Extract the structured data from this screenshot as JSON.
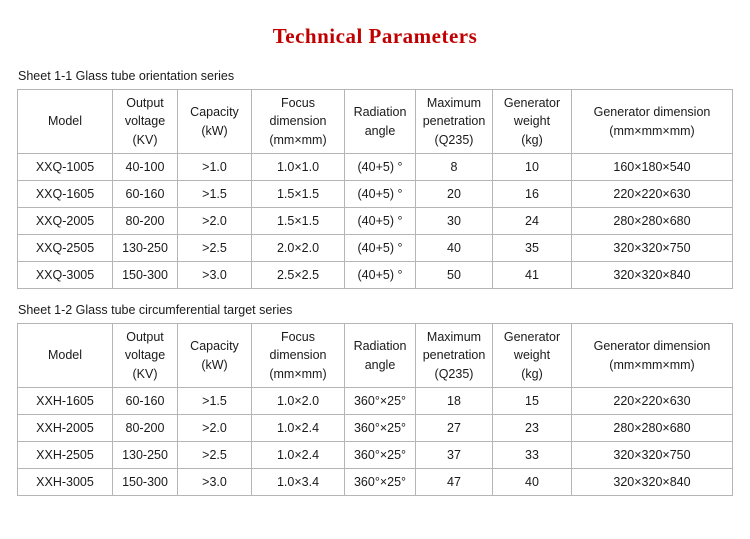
{
  "title": "Technical Parameters",
  "accent_color": "#c00000",
  "tables": [
    {
      "caption": "Sheet 1-1 Glass tube orientation series",
      "headers": [
        "Model",
        "Output\nvoltage\n(KV)",
        "Capacity\n(kW)",
        "Focus\ndimension\n(mm×mm)",
        "Radiation\nangle",
        "Maximum\npenetration\n(Q235)",
        "Generator\nweight\n(kg)",
        "Generator dimension\n(mm×mm×mm)"
      ],
      "rows": [
        [
          "XXQ-1005",
          "40-100",
          ">1.0",
          "1.0×1.0",
          "(40+5) °",
          "8",
          "10",
          "160×180×540"
        ],
        [
          "XXQ-1605",
          "60-160",
          ">1.5",
          "1.5×1.5",
          "(40+5) °",
          "20",
          "16",
          "220×220×630"
        ],
        [
          "XXQ-2005",
          "80-200",
          ">2.0",
          "1.5×1.5",
          "(40+5) °",
          "30",
          "24",
          "280×280×680"
        ],
        [
          "XXQ-2505",
          "130-250",
          ">2.5",
          "2.0×2.0",
          "(40+5) °",
          "40",
          "35",
          "320×320×750"
        ],
        [
          "XXQ-3005",
          "150-300",
          ">3.0",
          "2.5×2.5",
          "(40+5) °",
          "50",
          "41",
          "320×320×840"
        ]
      ]
    },
    {
      "caption": "Sheet 1-2 Glass tube circumferential target series",
      "headers": [
        "Model",
        "Output\nvoltage\n(KV)",
        "Capacity\n(kW)",
        "Focus\ndimension\n(mm×mm)",
        "Radiation\nangle",
        "Maximum\npenetration\n(Q235)",
        "Generator\nweight\n(kg)",
        "Generator dimension\n(mm×mm×mm)"
      ],
      "rows": [
        [
          "XXH-1605",
          "60-160",
          ">1.5",
          "1.0×2.0",
          "360°×25°",
          "18",
          "15",
          "220×220×630"
        ],
        [
          "XXH-2005",
          "80-200",
          ">2.0",
          "1.0×2.4",
          "360°×25°",
          "27",
          "23",
          "280×280×680"
        ],
        [
          "XXH-2505",
          "130-250",
          ">2.5",
          "1.0×2.4",
          "360°×25°",
          "37",
          "33",
          "320×320×750"
        ],
        [
          "XXH-3005",
          "150-300",
          ">3.0",
          "1.0×3.4",
          "360°×25°",
          "47",
          "40",
          "320×320×840"
        ]
      ]
    }
  ]
}
